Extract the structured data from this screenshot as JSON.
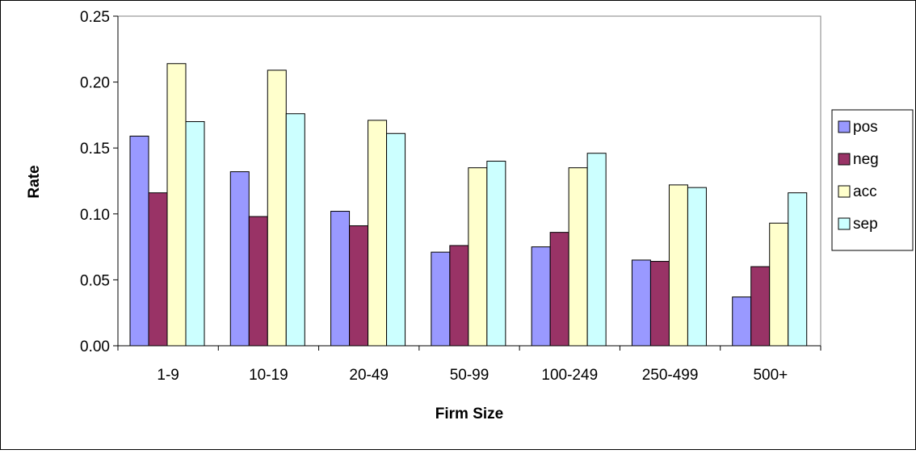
{
  "chart_data": {
    "type": "bar",
    "title": "",
    "xlabel": "Firm Size",
    "ylabel": "Rate",
    "categories": [
      "1-9",
      "10-19",
      "20-49",
      "50-99",
      "100-249",
      "250-499",
      "500+"
    ],
    "series": [
      {
        "name": "pos",
        "color": "#9999ff",
        "values": [
          0.159,
          0.132,
          0.102,
          0.071,
          0.075,
          0.065,
          0.037
        ]
      },
      {
        "name": "neg",
        "color": "#993366",
        "values": [
          0.116,
          0.098,
          0.091,
          0.076,
          0.086,
          0.064,
          0.06
        ]
      },
      {
        "name": "acc",
        "color": "#ffffcc",
        "values": [
          0.214,
          0.209,
          0.171,
          0.135,
          0.135,
          0.122,
          0.093
        ]
      },
      {
        "name": "sep",
        "color": "#ccffff",
        "values": [
          0.17,
          0.176,
          0.161,
          0.14,
          0.146,
          0.12,
          0.116
        ]
      }
    ],
    "ylim": [
      0,
      0.25
    ],
    "yticks": [
      "0.00",
      "0.05",
      "0.10",
      "0.15",
      "0.20",
      "0.25"
    ],
    "grid": false,
    "legend_position": "right"
  }
}
